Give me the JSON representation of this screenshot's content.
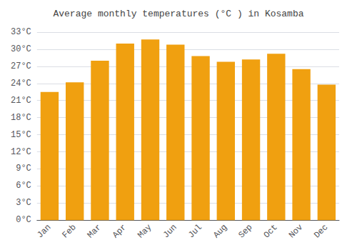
{
  "chart_data": {
    "type": "bar",
    "title": "Average monthly temperatures (°C ) in Kosamba",
    "categories": [
      "Jan",
      "Feb",
      "Mar",
      "Apr",
      "May",
      "Jun",
      "Jul",
      "Aug",
      "Sep",
      "Oct",
      "Nov",
      "Dec"
    ],
    "values": [
      22.5,
      24.2,
      28.0,
      31.0,
      31.7,
      30.8,
      28.8,
      27.8,
      28.2,
      29.2,
      26.5,
      23.8
    ],
    "color": "#F0A010",
    "ylim": [
      0,
      33
    ],
    "yticks": [
      {
        "value": 0,
        "label": "0°C"
      },
      {
        "value": 3,
        "label": "3°C"
      },
      {
        "value": 6,
        "label": "6°C"
      },
      {
        "value": 9,
        "label": "9°C"
      },
      {
        "value": 12,
        "label": "12°C"
      },
      {
        "value": 15,
        "label": "15°C"
      },
      {
        "value": 18,
        "label": "18°C"
      },
      {
        "value": 21,
        "label": "21°C"
      },
      {
        "value": 24,
        "label": "24°C"
      },
      {
        "value": 27,
        "label": "27°C"
      },
      {
        "value": 30,
        "label": "30°C"
      },
      {
        "value": 33,
        "label": "33°C"
      }
    ],
    "grid": true
  }
}
